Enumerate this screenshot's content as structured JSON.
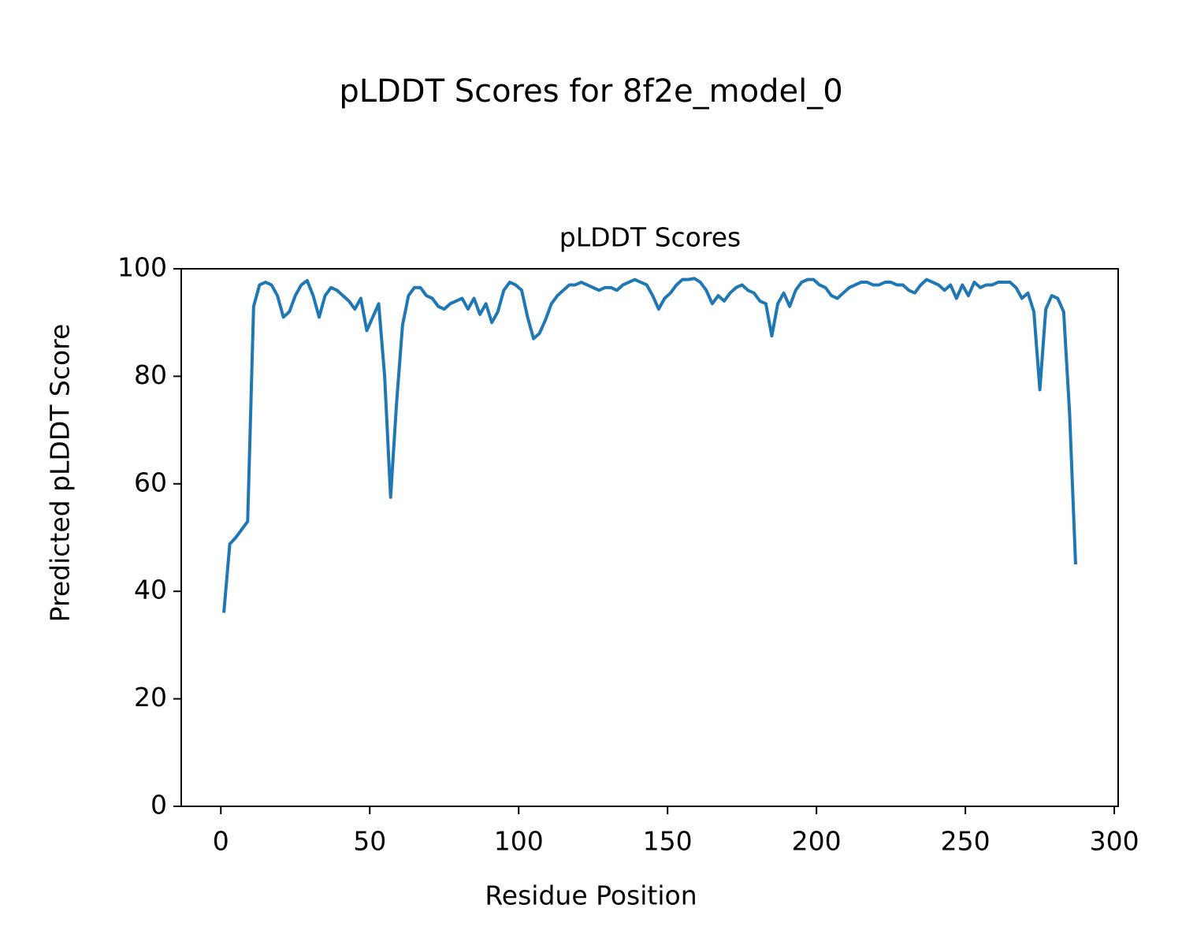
{
  "chart_data": {
    "type": "line",
    "suptitle": "pLDDT Scores for 8f2e_model_0",
    "title": "pLDDT Scores",
    "xlabel": "Residue Position",
    "ylabel": "Predicted pLDDT Score",
    "xlim": [
      -13.3,
      301.3
    ],
    "xticks": [
      0,
      50,
      100,
      150,
      200,
      250,
      300
    ],
    "ylim": [
      0,
      100
    ],
    "yticks": [
      0,
      20,
      40,
      60,
      80,
      100
    ],
    "grid": false,
    "series": [
      {
        "name": "pLDDT",
        "color": "#1f77b4",
        "x": [
          1,
          3,
          5,
          7,
          9,
          11,
          13,
          15,
          17,
          19,
          21,
          23,
          25,
          27,
          29,
          31,
          33,
          35,
          37,
          39,
          41,
          43,
          45,
          47,
          49,
          51,
          53,
          55,
          57,
          59,
          61,
          63,
          65,
          67,
          69,
          71,
          73,
          75,
          77,
          79,
          81,
          83,
          85,
          87,
          89,
          91,
          93,
          95,
          97,
          99,
          101,
          103,
          105,
          107,
          109,
          111,
          113,
          115,
          117,
          119,
          121,
          123,
          125,
          127,
          129,
          131,
          133,
          135,
          137,
          139,
          141,
          143,
          145,
          147,
          149,
          151,
          153,
          155,
          157,
          159,
          161,
          163,
          165,
          167,
          169,
          171,
          173,
          175,
          177,
          179,
          181,
          183,
          185,
          187,
          189,
          191,
          193,
          195,
          197,
          199,
          201,
          203,
          205,
          207,
          209,
          211,
          213,
          215,
          217,
          219,
          221,
          223,
          225,
          227,
          229,
          231,
          233,
          235,
          237,
          239,
          241,
          243,
          245,
          247,
          249,
          251,
          253,
          255,
          257,
          259,
          261,
          263,
          265,
          267,
          269,
          271,
          273,
          275,
          277,
          279,
          281,
          283,
          285,
          287
        ],
        "values": [
          36,
          48.8,
          50,
          51.5,
          53,
          93,
          97,
          97.5,
          97,
          95,
          91,
          92,
          95,
          97,
          97.8,
          95,
          91,
          95,
          96.5,
          96,
          95,
          94,
          92.5,
          94.5,
          88.5,
          91,
          93.5,
          80,
          57.5,
          75,
          89.5,
          95,
          96.5,
          96.5,
          95,
          94.5,
          93,
          92.5,
          93.5,
          94,
          94.5,
          92.5,
          94.5,
          91.5,
          93.5,
          90,
          92,
          96,
          97.5,
          97,
          96,
          91,
          87,
          88,
          90.5,
          93.5,
          95,
          96,
          97,
          97,
          97.5,
          97,
          96.5,
          96,
          96.5,
          96.5,
          96,
          97,
          97.5,
          98,
          97.5,
          97,
          95,
          92.5,
          94.5,
          95.5,
          97,
          98,
          98,
          98.2,
          97.5,
          96,
          93.5,
          95,
          94,
          95.5,
          96.5,
          97,
          96,
          95.5,
          94,
          93.5,
          87.5,
          93.5,
          95.5,
          93,
          96,
          97.5,
          98,
          98,
          97,
          96.5,
          95,
          94.5,
          95.5,
          96.5,
          97,
          97.5,
          97.5,
          97,
          97,
          97.5,
          97.5,
          97,
          97,
          96,
          95.5,
          97,
          98,
          97.5,
          97,
          96,
          97,
          94.5,
          97,
          95,
          97.5,
          96.5,
          97,
          97,
          97.5,
          97.5,
          97.5,
          96.5,
          94.5,
          95.5,
          92,
          77.5,
          92.5,
          95,
          94.5,
          92,
          73,
          45
        ]
      }
    ]
  }
}
